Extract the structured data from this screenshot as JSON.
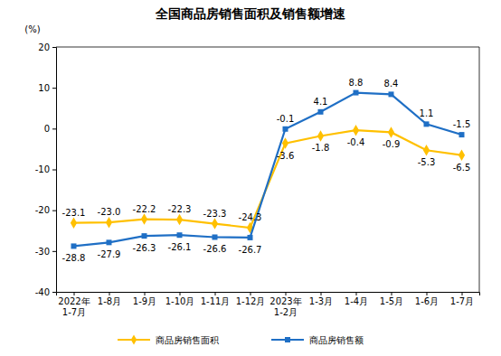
{
  "chart_data": {
    "type": "line",
    "title": "全国商品房销售面积及销售额增速",
    "ylabel": "(%)",
    "categories": [
      "2022年\n1-7月",
      "1-8月",
      "1-9月",
      "1-10月",
      "1-11月",
      "1-12月",
      "2023年\n1-2月",
      "1-3月",
      "1-4月",
      "1-5月",
      "1-6月",
      "1-7月"
    ],
    "series": [
      {
        "name": "商品房销售面积",
        "color": "#FFC000",
        "marker": "diamond",
        "values": [
          -23.1,
          -23.0,
          -22.2,
          -22.3,
          -23.3,
          -24.3,
          -3.6,
          -1.8,
          -0.4,
          -0.9,
          -5.3,
          -6.5
        ],
        "value_labels": [
          "-23.1",
          "-23.0",
          "-22.2",
          "-22.3",
          "-23.3",
          "-24.3",
          "-3.6",
          "-1.8",
          "-0.4",
          "-0.9",
          "-5.3",
          "-6.5"
        ]
      },
      {
        "name": "商品房销售额",
        "color": "#1F6FC5",
        "marker": "square",
        "values": [
          -28.8,
          -27.9,
          -26.3,
          -26.1,
          -26.6,
          -26.7,
          -0.1,
          4.1,
          8.8,
          8.4,
          1.1,
          -1.5
        ]
      }
    ],
    "ylim": [
      -40,
      20
    ],
    "yticks": [
      -40,
      -30,
      -20,
      -10,
      0,
      10,
      20
    ],
    "grid": false,
    "data_labels": true,
    "legend": "bottom"
  }
}
